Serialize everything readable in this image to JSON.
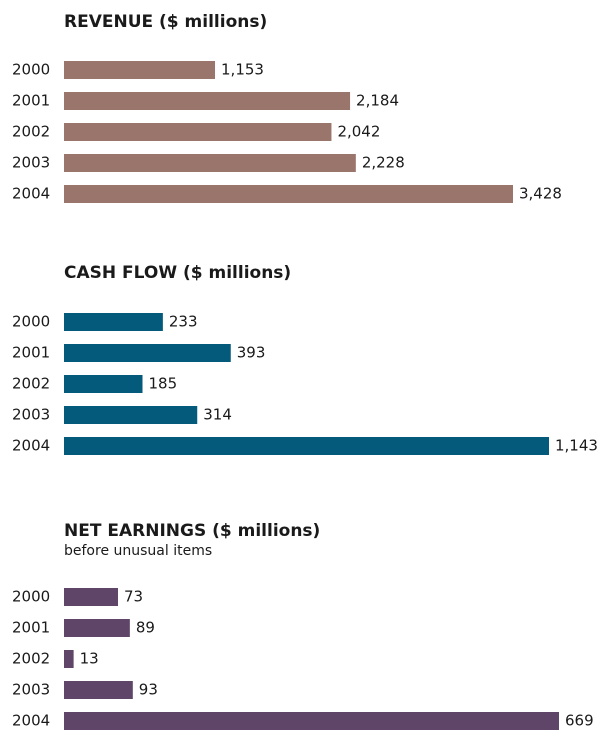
{
  "chart_data": [
    {
      "type": "bar",
      "title": "REVENUE ($ millions)",
      "categories": [
        "2000",
        "2001",
        "2002",
        "2003",
        "2004"
      ],
      "values": [
        1153,
        2184,
        2042,
        2228,
        3428
      ],
      "value_labels": [
        "1,153",
        "2,184",
        "2,042",
        "2,228",
        "3,428"
      ],
      "color": "#9a756b"
    },
    {
      "type": "bar",
      "title": "CASH FLOW ($ millions)",
      "categories": [
        "2000",
        "2001",
        "2002",
        "2003",
        "2004"
      ],
      "values": [
        233,
        393,
        185,
        314,
        1143
      ],
      "value_labels": [
        "233",
        "393",
        "185",
        "314",
        "1,143"
      ],
      "color": "#045a7a"
    },
    {
      "type": "bar",
      "title": "NET EARNINGS ($ millions)",
      "subtitle": "before unusual items",
      "categories": [
        "2000",
        "2001",
        "2002",
        "2003",
        "2004"
      ],
      "values": [
        73,
        89,
        13,
        93,
        669
      ],
      "value_labels": [
        "73",
        "89",
        "13",
        "93",
        "669"
      ],
      "color": "#5f4668"
    }
  ]
}
